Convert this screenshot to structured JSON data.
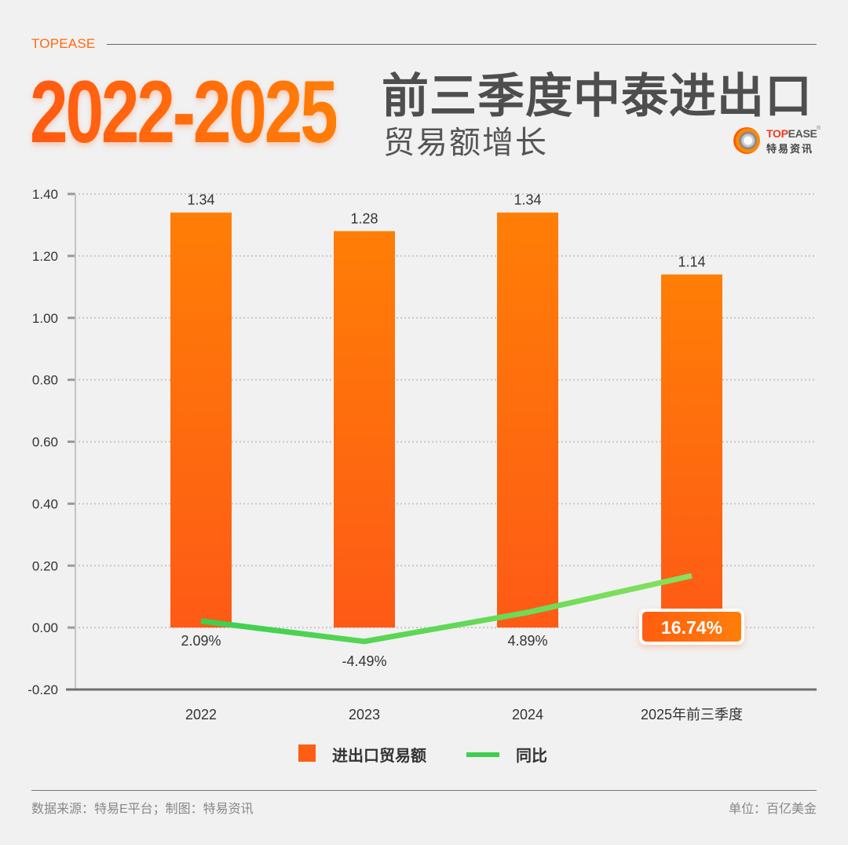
{
  "header": {
    "brand": "TOPEASE",
    "years": "2022-2025",
    "title_main": "前三季度中泰进出口",
    "title_sub": "贸易额增长",
    "logo": {
      "en_part1": "TOP",
      "en_part2": "EASE",
      "reg": "®",
      "cn": "特易资讯"
    }
  },
  "colors": {
    "bar_top": "#ff7e06",
    "bar_bottom": "#fe5a16",
    "line_start": "#3ccf4e",
    "line_end": "#86e15e",
    "accent": "#ff6a10"
  },
  "chart_data": {
    "type": "bar",
    "categories": [
      "2022",
      "2023",
      "2024",
      "2025年前三季度"
    ],
    "series": [
      {
        "name": "进出口贸易额",
        "type": "bar",
        "values": [
          1.34,
          1.28,
          1.34,
          1.14
        ],
        "labels": [
          "1.34",
          "1.28",
          "1.34",
          "1.14"
        ]
      },
      {
        "name": "同比",
        "type": "line",
        "values": [
          0.0209,
          -0.0449,
          0.0489,
          0.1674
        ],
        "labels": [
          "2.09%",
          "-4.49%",
          "4.89%",
          "16.74%"
        ]
      }
    ],
    "highlight_label_index": 3,
    "yticks": [
      "1.40",
      "1.20",
      "1.00",
      "0.80",
      "0.60",
      "0.40",
      "0.20",
      "0.00",
      "-0.20"
    ],
    "ytick_values": [
      1.4,
      1.2,
      1.0,
      0.8,
      0.6,
      0.4,
      0.2,
      0.0,
      -0.2
    ],
    "ylim": [
      -0.2,
      1.4
    ],
    "grid": true,
    "legend_position": "bottom"
  },
  "legend": {
    "bar": "进出口贸易额",
    "line": "同比"
  },
  "footer": {
    "source": "数据来源：特易E平台；制图：特易资讯",
    "unit": "单位：百亿美金"
  }
}
